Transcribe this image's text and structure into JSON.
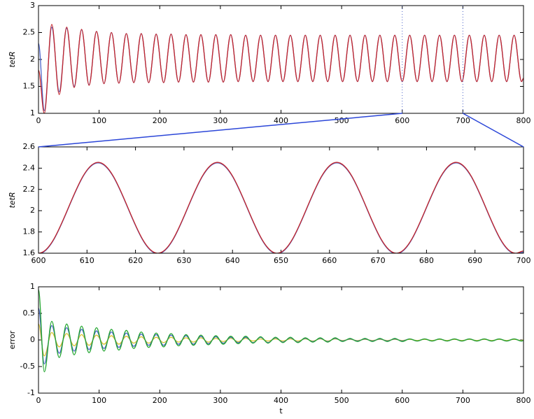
{
  "chart_data": [
    {
      "type": "line",
      "ylabel": "tetR",
      "x": [
        0,
        9.6,
        21.9,
        34.2,
        46.5,
        58.8,
        71.1,
        83.4,
        95.7,
        108,
        120.3,
        132.6,
        144.9,
        157.2,
        169.5,
        181.8,
        194.1,
        206.4,
        218.7,
        231,
        243.3,
        255.6,
        267.9,
        280.2,
        292.5,
        304.8,
        317.1,
        329.4,
        341.7,
        354,
        366.3,
        378.6,
        390.9,
        403.2,
        415.5,
        427.8,
        440.1,
        452.4,
        464.7,
        477,
        489.3,
        501.6,
        513.9,
        526.2,
        538.5,
        550.8,
        563.1,
        575.4,
        587.7,
        600,
        612.3,
        624.6,
        636.9,
        649.2,
        661.5,
        673.8,
        686.1,
        698.4,
        710.7,
        723,
        735.3,
        747.6,
        759.9,
        772.2,
        784.5,
        796.8,
        800
      ],
      "series": [
        {
          "color": "#4a62c8",
          "values": [
            2.3,
            1.05,
            2.6,
            1.4,
            2.58,
            1.5,
            2.55,
            1.53,
            2.52,
            1.55,
            2.5,
            1.56,
            2.48,
            1.57,
            2.48,
            1.57,
            2.47,
            1.57,
            2.47,
            1.58,
            2.46,
            1.58,
            2.46,
            1.58,
            2.46,
            1.58,
            2.46,
            1.59,
            2.45,
            1.59,
            2.45,
            1.59,
            2.45,
            1.59,
            2.45,
            1.59,
            2.45,
            1.59,
            2.45,
            1.59,
            2.45,
            1.59,
            2.45,
            1.59,
            2.45,
            1.59,
            2.45,
            1.59,
            2.45,
            1.59,
            2.45,
            1.59,
            2.45,
            1.59,
            2.45,
            1.59,
            2.45,
            1.59,
            2.45,
            1.59,
            2.45,
            1.59,
            2.45,
            1.59,
            2.45,
            1.59,
            1.65
          ]
        },
        {
          "color": "#c4262b",
          "values": [
            1.8,
            1.0,
            2.65,
            1.35,
            2.6,
            1.48,
            2.56,
            1.52,
            2.52,
            1.55,
            2.5,
            1.56,
            2.48,
            1.57,
            2.48,
            1.57,
            2.47,
            1.57,
            2.47,
            1.58,
            2.46,
            1.58,
            2.46,
            1.58,
            2.46,
            1.58,
            2.46,
            1.59,
            2.45,
            1.59,
            2.45,
            1.59,
            2.45,
            1.59,
            2.45,
            1.59,
            2.45,
            1.59,
            2.45,
            1.59,
            2.45,
            1.59,
            2.45,
            1.59,
            2.45,
            1.59,
            2.45,
            1.59,
            2.45,
            1.59,
            2.45,
            1.59,
            2.45,
            1.59,
            2.45,
            1.59,
            2.45,
            1.59,
            2.45,
            1.59,
            2.45,
            1.59,
            2.45,
            1.59,
            2.45,
            1.59,
            1.65
          ]
        }
      ],
      "xlim": [
        0,
        800
      ],
      "xticks": [
        0,
        100,
        200,
        300,
        400,
        500,
        600,
        700,
        800
      ],
      "ylim": [
        1,
        3
      ],
      "yticks": [
        1,
        1.5,
        2,
        2.5,
        3
      ]
    },
    {
      "type": "line",
      "ylabel": "tetR",
      "x": [
        600,
        612.3,
        624.6,
        636.9,
        649.2,
        661.5,
        673.8,
        686.1,
        698.4,
        700
      ],
      "series": [
        {
          "color": "#4a62c8",
          "values": [
            1.595,
            2.45,
            1.595,
            2.45,
            1.595,
            2.45,
            1.595,
            2.45,
            1.595,
            1.61
          ]
        },
        {
          "color": "#c4262b",
          "values": [
            1.6,
            2.455,
            1.6,
            2.455,
            1.6,
            2.455,
            1.6,
            2.455,
            1.6,
            1.62
          ]
        }
      ],
      "xlim": [
        600,
        700
      ],
      "xticks": [
        600,
        610,
        620,
        630,
        640,
        650,
        660,
        670,
        680,
        690,
        700
      ],
      "ylim": [
        1.6,
        2.6
      ],
      "yticks": [
        1.6,
        1.8,
        2,
        2.2,
        2.4,
        2.6
      ]
    },
    {
      "type": "line",
      "ylabel": "error",
      "xlabel": "t",
      "x": [
        0,
        9.6,
        21.9,
        34.2,
        46.5,
        58.8,
        71.1,
        83.4,
        95.7,
        108,
        120.3,
        132.6,
        144.9,
        157.2,
        169.5,
        181.8,
        194.1,
        206.4,
        218.7,
        231,
        243.3,
        255.6,
        267.9,
        280.2,
        292.5,
        304.8,
        317.1,
        329.4,
        341.7,
        354,
        366.3,
        378.6,
        390.9,
        403.2,
        415.5,
        427.8,
        440.1,
        452.4,
        464.7,
        477,
        489.3,
        501.6,
        513.9,
        526.2,
        538.5,
        550.8,
        563.1,
        575.4,
        587.7,
        600,
        612.3,
        624.6,
        636.9,
        649.2,
        661.5,
        673.8,
        686.1,
        698.4,
        710.7,
        723,
        735.3,
        747.6,
        759.9,
        772.2,
        784.5,
        796.8,
        800
      ],
      "series": [
        {
          "color": "#d8c72c",
          "values": [
            0.3,
            -0.3,
            0.14,
            -0.13,
            0.12,
            -0.11,
            0.1,
            -0.1,
            0.09,
            -0.08,
            0.08,
            -0.08,
            0.07,
            -0.06,
            0.06,
            -0.06,
            0.05,
            -0.05,
            0.05,
            -0.04,
            0.04,
            -0.04,
            0.04,
            -0.04,
            0.03,
            -0.03,
            0.03,
            -0.03,
            0.03,
            -0.02,
            0.02,
            -0.02,
            0.02,
            -0.02,
            0.02,
            -0.02,
            0.02,
            -0.02,
            0.02,
            -0.02,
            0.02,
            -0.01,
            0.01,
            -0.01,
            0.01,
            -0.01,
            0.01,
            -0.01,
            0.01,
            -0.01,
            0.01,
            -0.01,
            0.01,
            -0.01,
            0.01,
            -0.01,
            0.01,
            -0.01,
            0.01,
            -0.01,
            0.01,
            -0.01,
            0.01,
            -0.01,
            0.01,
            -0.01,
            0
          ]
        },
        {
          "color": "#4a62c8",
          "values": [
            0.6,
            -0.45,
            0.27,
            -0.25,
            0.23,
            -0.21,
            0.2,
            -0.18,
            0.17,
            -0.16,
            0.15,
            -0.14,
            0.13,
            -0.12,
            0.11,
            -0.1,
            0.1,
            -0.1,
            0.09,
            -0.08,
            0.08,
            -0.08,
            0.07,
            -0.07,
            0.06,
            -0.06,
            0.05,
            -0.05,
            0.05,
            -0.05,
            0.05,
            -0.05,
            0.04,
            -0.04,
            0.04,
            -0.04,
            0.03,
            -0.03,
            0.03,
            -0.03,
            0.03,
            -0.02,
            0.02,
            -0.02,
            0.02,
            -0.02,
            0.02,
            -0.02,
            0.02,
            -0.02,
            0.02,
            -0.02,
            0.02,
            -0.02,
            0.02,
            -0.02,
            0.02,
            -0.02,
            0.02,
            -0.02,
            0.02,
            -0.02,
            0.02,
            -0.02,
            0.02,
            -0.02,
            -0.01
          ]
        },
        {
          "color": "#24a631",
          "values": [
            0.95,
            -0.6,
            0.35,
            -0.33,
            0.3,
            -0.28,
            0.26,
            -0.24,
            0.23,
            -0.21,
            0.2,
            -0.19,
            0.18,
            -0.16,
            0.15,
            -0.14,
            0.13,
            -0.13,
            0.12,
            -0.11,
            0.1,
            -0.1,
            0.09,
            -0.09,
            0.08,
            -0.08,
            0.07,
            -0.07,
            0.07,
            -0.06,
            0.06,
            -0.06,
            0.05,
            -0.05,
            0.05,
            -0.05,
            0.04,
            -0.04,
            0.04,
            -0.04,
            0.04,
            -0.03,
            0.03,
            -0.03,
            0.03,
            -0.03,
            0.03,
            -0.03,
            0.03,
            -0.03,
            0.02,
            -0.02,
            0.02,
            -0.02,
            0.02,
            -0.02,
            0.02,
            -0.02,
            0.02,
            -0.02,
            0.02,
            -0.02,
            0.02,
            -0.02,
            0.02,
            -0.02,
            -0.01
          ]
        }
      ],
      "xlim": [
        0,
        800
      ],
      "xticks": [
        0,
        100,
        200,
        300,
        400,
        500,
        600,
        700,
        800
      ],
      "ylim": [
        -1,
        1
      ],
      "yticks": [
        -1,
        -0.5,
        0,
        0.5,
        1
      ]
    }
  ]
}
